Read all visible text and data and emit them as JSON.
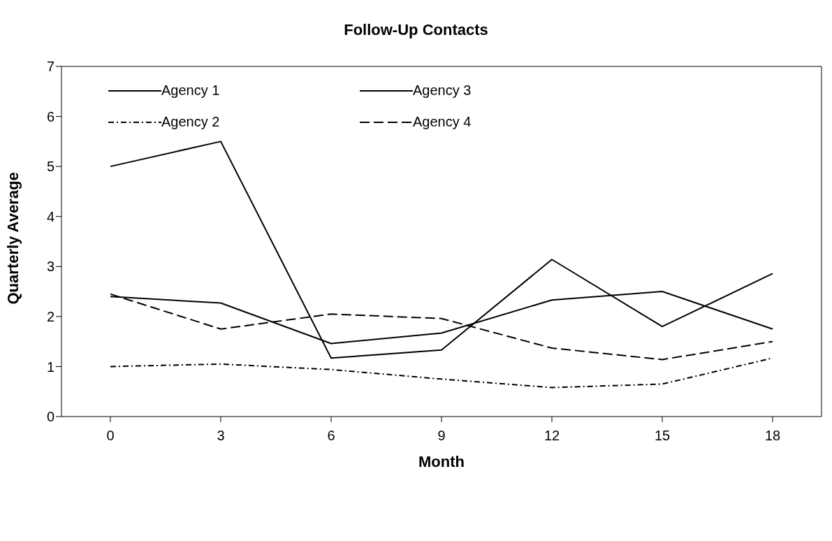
{
  "chart_data": {
    "type": "line",
    "title": "Follow-Up Contacts",
    "xlabel": "Month",
    "ylabel": "Quarterly Average",
    "categories": [
      "0",
      "3",
      "6",
      "9",
      "12",
      "15",
      "18"
    ],
    "ylim": [
      0,
      7
    ],
    "yticks": [
      0,
      1,
      2,
      3,
      4,
      5,
      6,
      7
    ],
    "grid": false,
    "legend": "top left",
    "marker": "none",
    "series": [
      {
        "name": "Agency 1",
        "color": "#000000",
        "line_style": "solid",
        "values": [
          5.0,
          5.5,
          1.17,
          1.33,
          3.14,
          1.8,
          2.86
        ]
      },
      {
        "name": "Agency 2",
        "color": "#000000",
        "line_style": "dashdot",
        "values": [
          1.0,
          1.05,
          0.94,
          0.75,
          0.58,
          0.65,
          1.17
        ]
      },
      {
        "name": "Agency 3",
        "color": "#000000",
        "line_style": "solid",
        "values": [
          2.4,
          2.27,
          1.46,
          1.67,
          2.33,
          2.5,
          1.75
        ]
      },
      {
        "name": "Agency 4",
        "color": "#000000",
        "line_style": "dashed",
        "values": [
          2.45,
          1.75,
          2.05,
          1.96,
          1.37,
          1.14,
          1.5
        ]
      }
    ]
  }
}
